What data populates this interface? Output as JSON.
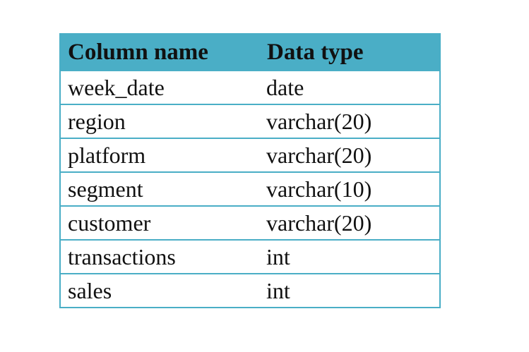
{
  "table": {
    "headers": {
      "column_name": "Column name",
      "data_type": "Data type"
    },
    "rows": [
      {
        "column": "week_date",
        "type": "date"
      },
      {
        "column": "region",
        "type": "varchar(20)"
      },
      {
        "column": "platform",
        "type": "varchar(20)"
      },
      {
        "column": "segment",
        "type": "varchar(10)"
      },
      {
        "column": "customer",
        "type": "varchar(20)"
      },
      {
        "column": "transactions",
        "type": "int"
      },
      {
        "column": "sales",
        "type": "int"
      }
    ]
  },
  "colors": {
    "header_background": "#4aaec6",
    "border": "#4aaec6",
    "text": "#111111"
  }
}
